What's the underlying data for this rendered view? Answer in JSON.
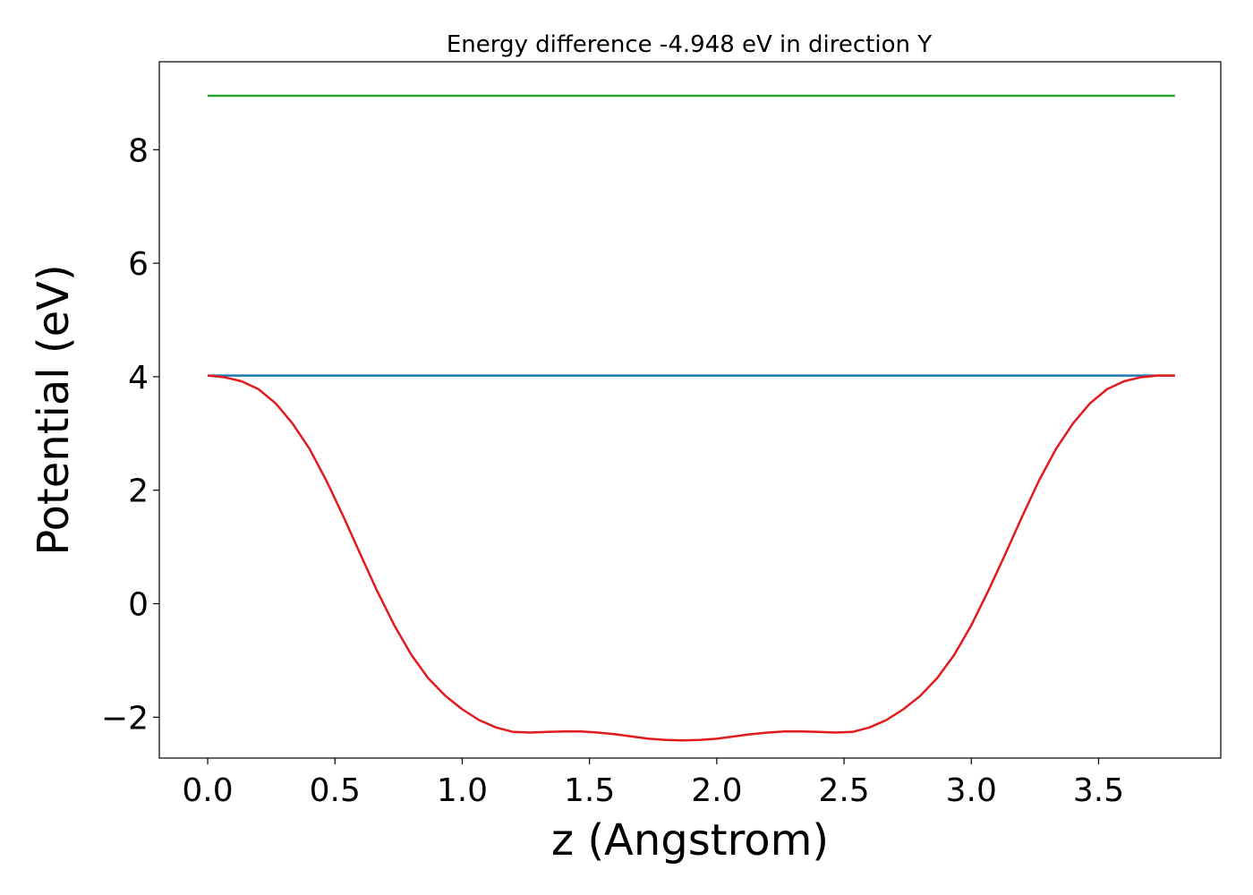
{
  "chart_data": {
    "type": "line",
    "title": "Energy difference -4.948 eV in direction Y",
    "xlabel": "z (Angstrom)",
    "ylabel": "Potential (eV)",
    "xlim": [
      -0.19,
      3.98
    ],
    "ylim": [
      -2.72,
      9.55
    ],
    "xticks": [
      0.0,
      0.5,
      1.0,
      1.5,
      2.0,
      2.5,
      3.0,
      3.5
    ],
    "xtick_labels": [
      "0.0",
      "0.5",
      "1.0",
      "1.5",
      "2.0",
      "2.5",
      "3.0",
      "3.5"
    ],
    "yticks": [
      -2,
      0,
      2,
      4,
      6,
      8
    ],
    "ytick_labels": [
      "−2",
      "0",
      "2",
      "4",
      "6",
      "8"
    ],
    "grid": false,
    "legend": false,
    "series": [
      {
        "color": "#2ca02c",
        "x": [
          0.0,
          3.8
        ],
        "values": [
          8.95,
          8.95
        ]
      },
      {
        "color": "#1f77b4",
        "x": [
          0.0,
          3.8
        ],
        "values": [
          4.02,
          4.02
        ]
      },
      {
        "color": "#e31a1c",
        "x": [
          0.0,
          0.066,
          0.133,
          0.2,
          0.267,
          0.333,
          0.4,
          0.466,
          0.533,
          0.6,
          0.666,
          0.733,
          0.8,
          0.866,
          0.933,
          1.0,
          1.066,
          1.133,
          1.2,
          1.266,
          1.333,
          1.4,
          1.466,
          1.533,
          1.6,
          1.666,
          1.733,
          1.8,
          1.866,
          1.933,
          2.0,
          2.066,
          2.133,
          2.2,
          2.266,
          2.333,
          2.4,
          2.466,
          2.533,
          2.6,
          2.666,
          2.733,
          2.8,
          2.866,
          2.933,
          3.0,
          3.066,
          3.133,
          3.2,
          3.266,
          3.333,
          3.4,
          3.466,
          3.533,
          3.6,
          3.666,
          3.733,
          3.8
        ],
        "values": [
          4.02,
          3.99,
          3.92,
          3.78,
          3.53,
          3.18,
          2.73,
          2.17,
          1.54,
          0.87,
          0.22,
          -0.38,
          -0.9,
          -1.31,
          -1.62,
          -1.86,
          -2.05,
          -2.18,
          -2.26,
          -2.27,
          -2.26,
          -2.25,
          -2.25,
          -2.27,
          -2.3,
          -2.34,
          -2.38,
          -2.4,
          -2.41,
          -2.4,
          -2.38,
          -2.34,
          -2.3,
          -2.27,
          -2.25,
          -2.25,
          -2.26,
          -2.27,
          -2.26,
          -2.18,
          -2.05,
          -1.86,
          -1.62,
          -1.31,
          -0.9,
          -0.38,
          0.22,
          0.87,
          1.54,
          2.17,
          2.73,
          3.18,
          3.53,
          3.78,
          3.92,
          3.99,
          4.02,
          4.02
        ]
      }
    ]
  }
}
